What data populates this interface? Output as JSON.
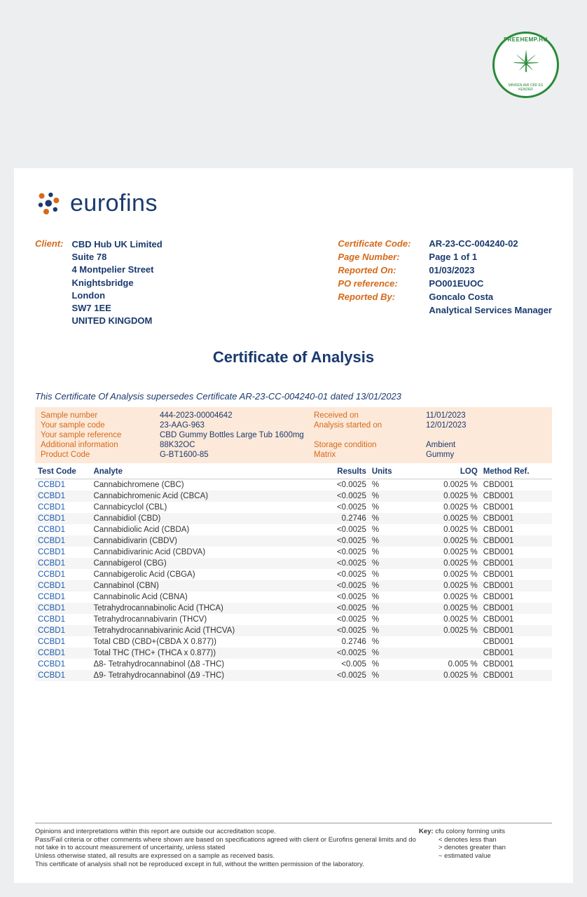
{
  "stamp": {
    "top": "FREEHEMP.HU",
    "bottom": "MINDEN AMI CBD ÉS KENDER"
  },
  "logo": {
    "text": "eurofins"
  },
  "client": {
    "label": "Client:",
    "lines": [
      "CBD Hub UK Limited",
      "Suite 78",
      "4 Montpelier Street",
      "Knightsbridge",
      "London",
      "SW7 1EE",
      "UNITED KINGDOM"
    ]
  },
  "cert": {
    "rows": [
      {
        "label": "Certificate Code:",
        "val": "AR-23-CC-004240-02"
      },
      {
        "label": "Page Number:",
        "val": "Page 1 of 1"
      },
      {
        "label": "Reported On:",
        "val": "01/03/2023"
      },
      {
        "label": "PO reference:",
        "val": "PO001EUOC"
      },
      {
        "label": "Reported By:",
        "val": "Goncalo Costa"
      },
      {
        "label": "",
        "val": "Analytical Services Manager"
      }
    ]
  },
  "title": "Certificate of Analysis",
  "supersede": "This Certificate Of Analysis supersedes Certificate AR-23-CC-004240-01 dated 13/01/2023",
  "sample": {
    "rows": [
      [
        "Sample number",
        "444-2023-00004642",
        "Received on",
        "11/01/2023"
      ],
      [
        "Your sample code",
        "23-AAG-963",
        "Analysis started on",
        "12/01/2023"
      ],
      [
        "Your sample reference",
        "CBD Gummy Bottles Large Tub 1600mg",
        "",
        ""
      ],
      [
        "Additional information",
        "88K32OC",
        "Storage condition",
        "Ambient"
      ],
      [
        "Product Code",
        "G-BT1600-85",
        "Matrix",
        "Gummy"
      ]
    ]
  },
  "table": {
    "headers": [
      "Test Code",
      "Analyte",
      "Results",
      "Units",
      "LOQ",
      "Method Ref."
    ],
    "rows": [
      [
        "CCBD1",
        "Cannabichromene (CBC)",
        "<0.0025",
        "%",
        "0.0025 %",
        "CBD001"
      ],
      [
        "CCBD1",
        "Cannabichromenic Acid (CBCA)",
        "<0.0025",
        "%",
        "0.0025 %",
        "CBD001"
      ],
      [
        "CCBD1",
        "Cannabicyclol (CBL)",
        "<0.0025",
        "%",
        "0.0025 %",
        "CBD001"
      ],
      [
        "CCBD1",
        "Cannabidiol (CBD)",
        "0.2746",
        "%",
        "0.0025 %",
        "CBD001"
      ],
      [
        "CCBD1",
        "Cannabidiolic Acid (CBDA)",
        "<0.0025",
        "%",
        "0.0025 %",
        "CBD001"
      ],
      [
        "CCBD1",
        "Cannabidivarin (CBDV)",
        "<0.0025",
        "%",
        "0.0025 %",
        "CBD001"
      ],
      [
        "CCBD1",
        "Cannabidivarinic Acid (CBDVA)",
        "<0.0025",
        "%",
        "0.0025 %",
        "CBD001"
      ],
      [
        "CCBD1",
        "Cannabigerol (CBG)",
        "<0.0025",
        "%",
        "0.0025 %",
        "CBD001"
      ],
      [
        "CCBD1",
        "Cannabigerolic Acid (CBGA)",
        "<0.0025",
        "%",
        "0.0025 %",
        "CBD001"
      ],
      [
        "CCBD1",
        "Cannabinol (CBN)",
        "<0.0025",
        "%",
        "0.0025 %",
        "CBD001"
      ],
      [
        "CCBD1",
        "Cannabinolic Acid (CBNA)",
        "<0.0025",
        "%",
        "0.0025 %",
        "CBD001"
      ],
      [
        "CCBD1",
        "Tetrahydrocannabinolic Acid (THCA)",
        "<0.0025",
        "%",
        "0.0025 %",
        "CBD001"
      ],
      [
        "CCBD1",
        "Tetrahydrocannabivarin (THCV)",
        "<0.0025",
        "%",
        "0.0025 %",
        "CBD001"
      ],
      [
        "CCBD1",
        "Tetrahydrocannabivarinic Acid (THCVA)",
        "<0.0025",
        "%",
        "0.0025 %",
        "CBD001"
      ],
      [
        "CCBD1",
        "Total CBD (CBD+(CBDA X 0.877))",
        "0.2746",
        "%",
        "",
        "CBD001"
      ],
      [
        "CCBD1",
        "Total THC (THC+ (THCA x 0.877))",
        "<0.0025",
        "%",
        "",
        "CBD001"
      ],
      [
        "CCBD1",
        "Δ8- Tetrahydrocannabinol (Δ8 -THC)",
        "<0.005",
        "%",
        "0.005 %",
        "CBD001"
      ],
      [
        "CCBD1",
        "Δ9- Tetrahydrocannabinol (Δ9 -THC)",
        "<0.0025",
        "%",
        "0.0025 %",
        "CBD001"
      ]
    ]
  },
  "footer": {
    "left": [
      "Opinions and interpretations within this report are outside our accreditation scope.",
      "Pass/Fail criteria or other comments where shown are based on specifications agreed with client or Eurofins general limits and do not take in to account measurement of uncertainty, unless stated",
      "Unless otherwise stated, all results are expressed on a sample as received basis.",
      "This certificate of analysis shall not be reproduced except in full, without the written permission of the laboratory."
    ],
    "keyLabel": "Key:",
    "key": [
      "cfu colony forming units",
      "< denotes less than",
      "> denotes greater than",
      "~ estimated value"
    ]
  }
}
